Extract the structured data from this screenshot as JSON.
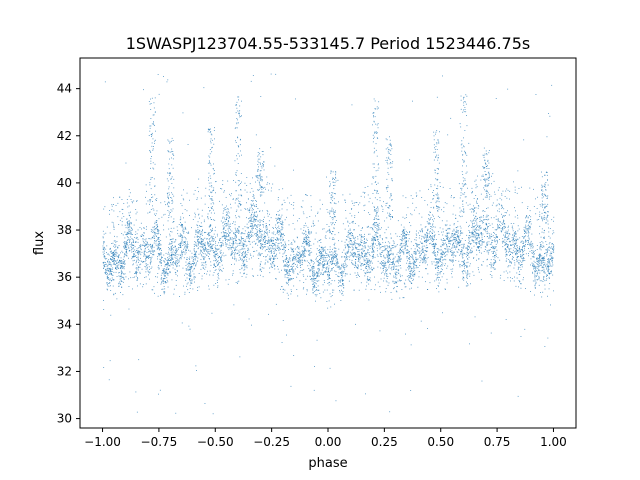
{
  "chart_data": {
    "type": "scatter",
    "title": "1SWASPJ123704.55-533145.7 Period 1523446.75s",
    "xlabel": "phase",
    "ylabel": "flux",
    "xlim": [
      -1.1,
      1.1
    ],
    "ylim": [
      29.6,
      45.3
    ],
    "xticks": [
      -1.0,
      -0.75,
      -0.5,
      -0.25,
      0.0,
      0.25,
      0.5,
      0.75,
      1.0
    ],
    "xtick_labels": [
      "−1.00",
      "−0.75",
      "−0.50",
      "−0.25",
      "0.00",
      "0.25",
      "0.50",
      "0.75",
      "1.00"
    ],
    "yticks": [
      30,
      32,
      34,
      36,
      38,
      40,
      42,
      44
    ],
    "ytick_labels": [
      "30",
      "32",
      "34",
      "36",
      "38",
      "40",
      "42",
      "44"
    ],
    "grid": false,
    "legend": "none",
    "color": "#1f77b4",
    "series": [
      {
        "x": [
          -1.0,
          -0.95,
          -0.9,
          -0.85,
          -0.8,
          -0.75,
          -0.7,
          -0.65,
          -0.6,
          -0.55,
          -0.5,
          -0.45,
          -0.4,
          -0.35,
          -0.3,
          -0.25,
          -0.2,
          -0.15,
          -0.1,
          -0.05,
          0.0,
          0.05,
          0.1,
          0.15,
          0.2,
          0.25,
          0.3,
          0.35,
          0.4,
          0.45,
          0.5,
          0.55,
          0.6,
          0.65,
          0.7,
          0.75,
          0.8,
          0.85,
          0.9,
          0.95,
          1.0
        ],
        "y": [
          36.3,
          36.8,
          37.0,
          37.3,
          37.3,
          36.9,
          36.8,
          37.0,
          37.2,
          37.2,
          37.4,
          37.5,
          37.5,
          37.8,
          37.9,
          37.6,
          37.1,
          36.8,
          36.9,
          36.7,
          36.3,
          36.8,
          37.0,
          37.2,
          37.3,
          37.0,
          36.8,
          36.9,
          37.2,
          37.3,
          37.3,
          37.3,
          37.3,
          37.6,
          37.8,
          37.7,
          37.6,
          37.3,
          37.1,
          36.9,
          36.5
        ],
        "spread": [
          1.1,
          1.3,
          1.4,
          1.5,
          1.5,
          1.3,
          1.3,
          1.4,
          1.4,
          1.4,
          1.5,
          1.5,
          1.5,
          1.6,
          1.6,
          1.5,
          1.4,
          1.3,
          1.3,
          1.3,
          1.2,
          1.3,
          1.4,
          1.4,
          1.5,
          1.4,
          1.3,
          1.3,
          1.4,
          1.4,
          1.4,
          1.4,
          1.4,
          1.5,
          1.6,
          1.5,
          1.5,
          1.4,
          1.4,
          1.3,
          1.2
        ],
        "flares": [
          {
            "x": -0.78,
            "top": 43.8
          },
          {
            "x": -0.7,
            "top": 42.0
          },
          {
            "x": -0.52,
            "top": 42.4
          },
          {
            "x": -0.4,
            "top": 43.8
          },
          {
            "x": -0.3,
            "top": 41.5
          },
          {
            "x": 0.02,
            "top": 40.6
          },
          {
            "x": 0.21,
            "top": 43.8
          },
          {
            "x": 0.27,
            "top": 42.0
          },
          {
            "x": 0.48,
            "top": 42.4
          },
          {
            "x": 0.6,
            "top": 43.8
          },
          {
            "x": 0.7,
            "top": 41.5
          },
          {
            "x": 0.96,
            "top": 40.5
          }
        ]
      }
    ]
  }
}
